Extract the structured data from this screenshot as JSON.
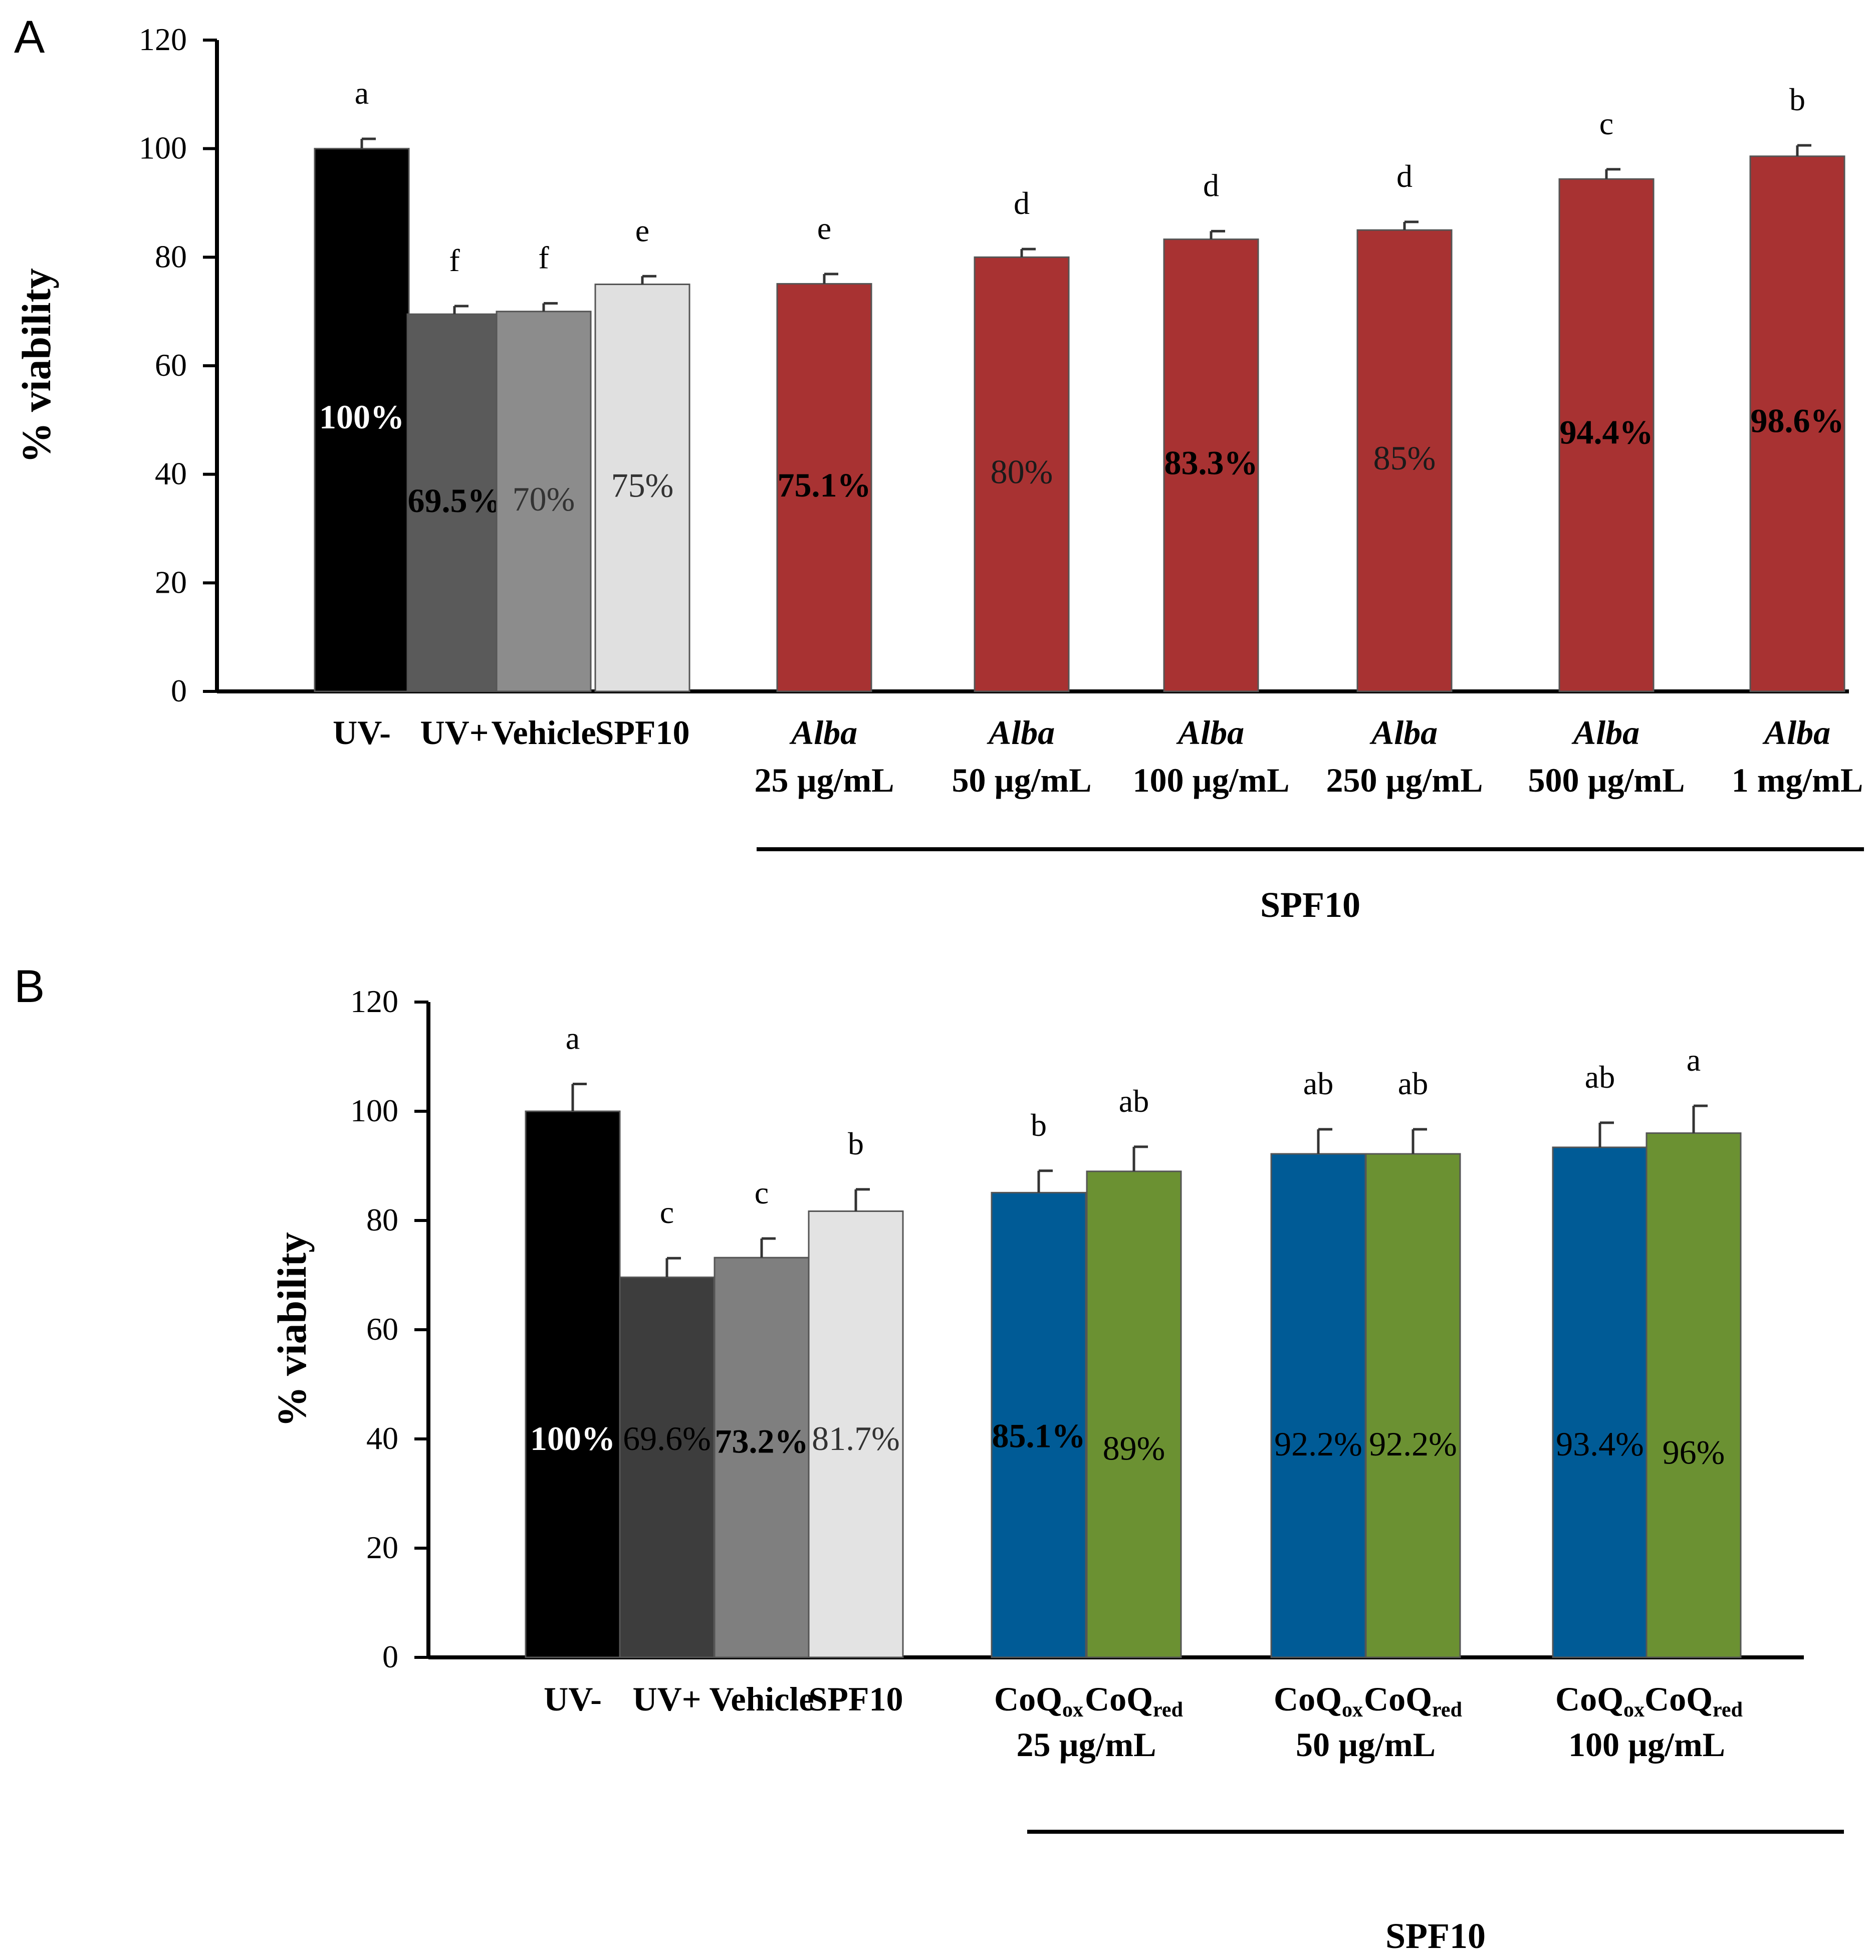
{
  "chart_data": [
    {
      "type": "bar",
      "panel_label": "A",
      "ylabel": "% viability",
      "ylim": [
        0,
        120
      ],
      "yticks": [
        0,
        20,
        40,
        60,
        80,
        100,
        120
      ],
      "yticklabels": [
        "0",
        "20",
        "40",
        "60",
        "80",
        "100",
        "120"
      ],
      "grid": false,
      "bars": [
        {
          "name": "UV-",
          "value": 100,
          "error": 1.8,
          "letter": "a",
          "label": "100%",
          "fill": "#000000",
          "label_color": "#ffffff",
          "label_bold": true,
          "label_dy": 0
        },
        {
          "name": "UV+",
          "value": 69.5,
          "error": 1.5,
          "letter": "f",
          "label": "69.5%",
          "fill": "#5a5a5a",
          "label_color": "#000000",
          "label_bold": true,
          "label_dy": 0
        },
        {
          "name": "Vehicle",
          "value": 70,
          "error": 1.5,
          "letter": "f",
          "label": "70%",
          "fill": "#8c8c8c",
          "label_color": "#333333",
          "label_bold": false,
          "label_dy": 0
        },
        {
          "name": "SPF10",
          "value": 75,
          "error": 1.5,
          "letter": "e",
          "label": "75%",
          "fill": "#e0e0e0",
          "label_color": "#333333",
          "label_bold": false,
          "label_dy": 0
        },
        {
          "name": "Alba 25 µg/mL",
          "value": 75.1,
          "error": 1.8,
          "letter": "e",
          "label": "75.1%",
          "fill": "#a83232",
          "label_color": "#000000",
          "label_bold": true,
          "label_dy": 0
        },
        {
          "name": "Alba 50 µg/mL",
          "value": 80,
          "error": 1.5,
          "letter": "d",
          "label": "80%",
          "fill": "#a83232",
          "label_color": "#1a1a1a",
          "label_bold": false,
          "label_dy": 0
        },
        {
          "name": "Alba 100 µg/mL",
          "value": 83.3,
          "error": 1.5,
          "letter": "d",
          "label": "83.3%",
          "fill": "#a83232",
          "label_color": "#000000",
          "label_bold": true,
          "label_dy": 0
        },
        {
          "name": "Alba 250 µg/mL",
          "value": 85,
          "error": 1.5,
          "letter": "d",
          "label": "85%",
          "fill": "#a83232",
          "label_color": "#1a1a1a",
          "label_bold": false,
          "label_dy": 0
        },
        {
          "name": "Alba 500 µg/mL",
          "value": 94.4,
          "error": 1.8,
          "letter": "c",
          "label": "94.4%",
          "fill": "#a83232",
          "label_color": "#000000",
          "label_bold": true,
          "label_dy": 0
        },
        {
          "name": "Alba 1 mg/mL",
          "value": 98.6,
          "error": 2.0,
          "letter": "b",
          "label": "98.6%",
          "fill": "#a83232",
          "label_color": "#000000",
          "label_bold": true,
          "label_dy": 0
        }
      ],
      "xlabels": [
        {
          "l1": "UV-",
          "italic1": false
        },
        {
          "l1": "UV+",
          "italic1": false
        },
        {
          "l1": "Vehicle",
          "italic1": false
        },
        {
          "l1": "SPF10",
          "italic1": false
        },
        {
          "l1": "Alba",
          "italic1": true,
          "l2": "25 µg/mL"
        },
        {
          "l1": "Alba",
          "italic1": true,
          "l2": "50 µg/mL"
        },
        {
          "l1": "Alba",
          "italic1": true,
          "l2": "100 µg/mL"
        },
        {
          "l1": "Alba",
          "italic1": true,
          "l2": "250 µg/mL"
        },
        {
          "l1": "Alba",
          "italic1": true,
          "l2": "500 µg/mL"
        },
        {
          "l1": "Alba",
          "italic1": true,
          "l2": "1 mg/mL"
        }
      ],
      "group_label": "SPF10"
    },
    {
      "type": "bar",
      "panel_label": "B",
      "ylabel": "% viability",
      "ylim": [
        0,
        120
      ],
      "yticks": [
        0,
        20,
        40,
        60,
        80,
        100,
        120
      ],
      "yticklabels": [
        "0",
        "20",
        "40",
        "60",
        "80",
        "100",
        "120"
      ],
      "grid": false,
      "bars": [
        {
          "name": "UV-",
          "value": 100,
          "error": 5,
          "letter": "a",
          "label": "100%",
          "fill": "#000000",
          "label_color": "#ffffff",
          "label_bold": true,
          "label_dy": 0
        },
        {
          "name": "UV+",
          "value": 69.6,
          "error": 3.5,
          "letter": "c",
          "label": "69.6%",
          "fill": "#3d3d3d",
          "label_color": "#000000",
          "label_bold": false,
          "label_dy": 0
        },
        {
          "name": "Vehicle",
          "value": 73.2,
          "error": 3.5,
          "letter": "c",
          "label": "73.2%",
          "fill": "#7f7f7f",
          "label_color": "#000000",
          "label_bold": true,
          "label_dy": -0.5
        },
        {
          "name": "SPF10",
          "value": 81.7,
          "error": 4,
          "letter": "b",
          "label": "81.7%",
          "fill": "#e3e3e3",
          "label_color": "#333333",
          "label_bold": false,
          "label_dy": 0
        },
        {
          "name": "CoQox 25 µg/mL",
          "value": 85.1,
          "error": 4,
          "letter": "b",
          "label": "85.1%",
          "fill": "#005b96",
          "label_color": "#000000",
          "label_bold": true,
          "label_dy": 0.5
        },
        {
          "name": "CoQred 25 µg/mL",
          "value": 89,
          "error": 4.5,
          "letter": "ab",
          "label": "89%",
          "fill": "#6b9132",
          "label_color": "#000000",
          "label_bold": false,
          "label_dy": -1.8
        },
        {
          "name": "CoQox 50 µg/mL",
          "value": 92.2,
          "error": 4.5,
          "letter": "ab",
          "label": "92.2%",
          "fill": "#005b96",
          "label_color": "#000000",
          "label_bold": false,
          "label_dy": -1
        },
        {
          "name": "CoQred 50 µg/mL",
          "value": 92.2,
          "error": 4.5,
          "letter": "ab",
          "label": "92.2%",
          "fill": "#6b9132",
          "label_color": "#000000",
          "label_bold": false,
          "label_dy": -1
        },
        {
          "name": "CoQox 100 µg/mL",
          "value": 93.4,
          "error": 4.5,
          "letter": "ab",
          "label": "93.4%",
          "fill": "#005b96",
          "label_color": "#000000",
          "label_bold": false,
          "label_dy": -1
        },
        {
          "name": "CoQred 100 µg/mL",
          "value": 96,
          "error": 5,
          "letter": "a",
          "label": "96%",
          "fill": "#6b9132",
          "label_color": "#000000",
          "label_bold": false,
          "label_dy": -2.5
        }
      ],
      "xlabels": [
        {
          "l1": "UV-"
        },
        {
          "l1": "UV+"
        },
        {
          "l1": "Vehicle"
        },
        {
          "l1": "SPF10"
        }
      ],
      "pair_labels": [
        {
          "ox": "CoQ",
          "ox_sub": "ox",
          "red": "CoQ",
          "red_sub": "red",
          "conc": "25 µg/mL"
        },
        {
          "ox": "CoQ",
          "ox_sub": "ox",
          "red": "CoQ",
          "red_sub": "red",
          "conc": "50 µg/mL"
        },
        {
          "ox": "CoQ",
          "ox_sub": "ox",
          "red": "CoQ",
          "red_sub": "red",
          "conc": "100 µg/mL"
        }
      ],
      "group_label": "SPF10"
    }
  ]
}
